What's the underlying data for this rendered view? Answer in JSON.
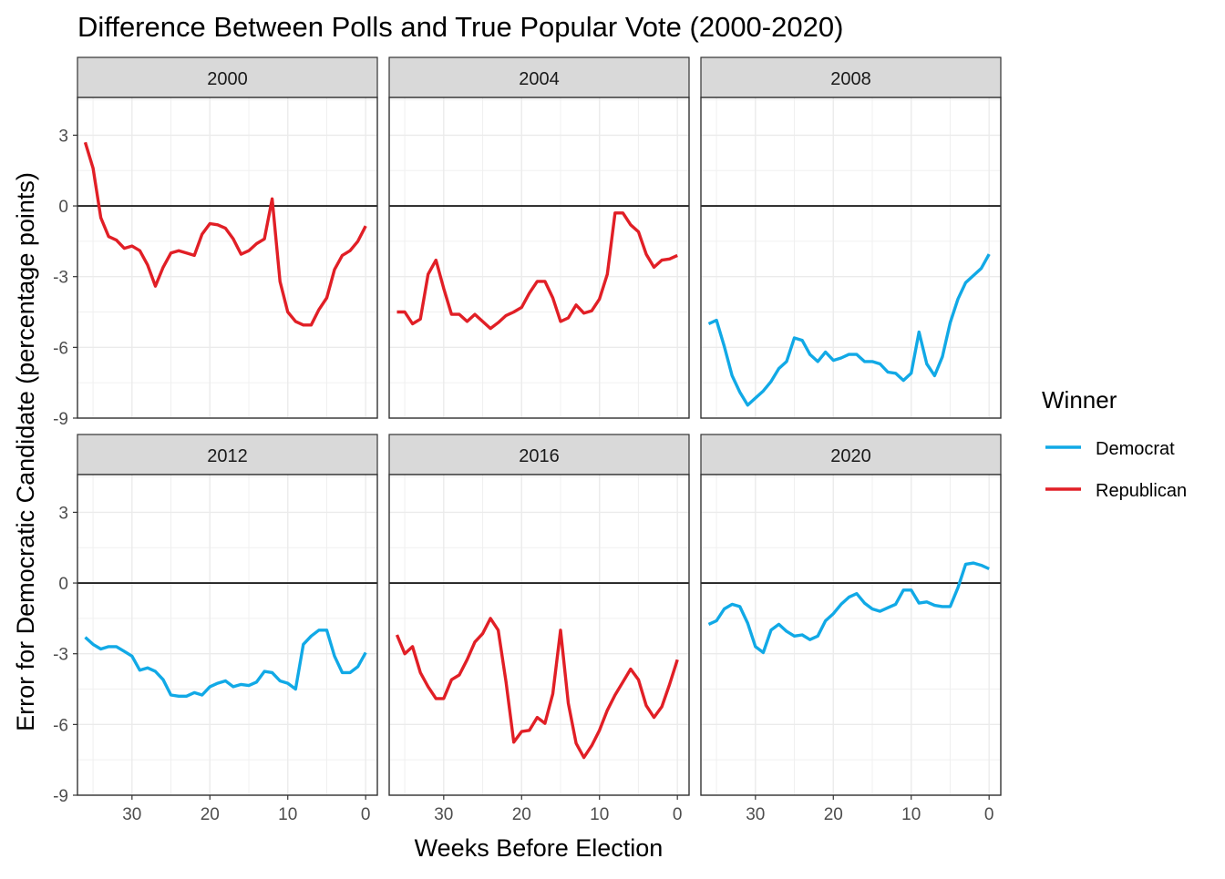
{
  "chart_data": {
    "type": "line",
    "title": "Difference Between Polls and True Popular Vote (2000-2020)",
    "xlabel": "Weeks Before Election",
    "ylabel": "Error for Democratic Candidate (percentage points)",
    "xlim": [
      37,
      -1.5
    ],
    "ylim": [
      -9,
      4.6
    ],
    "x_ticks": [
      30,
      20,
      10,
      0
    ],
    "y_ticks": [
      3,
      0,
      -3,
      -6,
      -9
    ],
    "reference_line_y": 0,
    "grid": true,
    "legend": {
      "title": "Winner",
      "position": "right",
      "entries": [
        {
          "label": "Democrat",
          "color": "#11A9E6"
        },
        {
          "label": "Republican",
          "color": "#E11F26"
        }
      ]
    },
    "colors": {
      "Democrat": "#11A9E6",
      "Republican": "#E11F26"
    },
    "panels": [
      {
        "label": "2000",
        "winner": "Republican",
        "x": [
          36,
          35,
          34,
          33,
          32,
          31,
          30,
          29,
          28,
          27,
          26,
          25,
          24,
          23,
          22,
          21,
          20,
          19,
          18,
          17,
          16,
          15,
          14,
          13,
          12,
          11,
          10,
          9,
          8,
          7,
          6,
          5,
          4,
          3,
          2,
          1,
          0
        ],
        "y": [
          2.7,
          1.6,
          -0.5,
          -1.3,
          -1.45,
          -1.8,
          -1.7,
          -1.9,
          -2.5,
          -3.4,
          -2.6,
          -2.0,
          -1.9,
          -2.0,
          -2.1,
          -1.2,
          -0.75,
          -0.8,
          -0.95,
          -1.4,
          -2.05,
          -1.9,
          -1.6,
          -1.4,
          0.3,
          -3.2,
          -4.5,
          -4.9,
          -5.05,
          -5.05,
          -4.4,
          -3.9,
          -2.7,
          -2.1,
          -1.9,
          -1.5,
          -0.85
        ]
      },
      {
        "label": "2004",
        "winner": "Republican",
        "x": [
          36,
          35,
          34,
          33,
          32,
          31,
          30,
          29,
          28,
          27,
          26,
          25,
          24,
          23,
          22,
          21,
          20,
          19,
          18,
          17,
          16,
          15,
          14,
          13,
          12,
          11,
          10,
          9,
          8,
          7,
          6,
          5,
          4,
          3,
          2,
          1,
          0
        ],
        "y": [
          -4.5,
          -4.5,
          -5.0,
          -4.8,
          -2.9,
          -2.3,
          -3.5,
          -4.6,
          -4.6,
          -4.9,
          -4.6,
          -4.9,
          -5.2,
          -4.95,
          -4.65,
          -4.5,
          -4.3,
          -3.7,
          -3.2,
          -3.2,
          -3.9,
          -4.9,
          -4.75,
          -4.2,
          -4.55,
          -4.45,
          -3.95,
          -2.9,
          -0.3,
          -0.3,
          -0.8,
          -1.1,
          -2.05,
          -2.6,
          -2.3,
          -2.25,
          -2.1
        ]
      },
      {
        "label": "2008",
        "winner": "Democrat",
        "x": [
          36,
          35,
          34,
          33,
          32,
          31,
          30,
          29,
          28,
          27,
          26,
          25,
          24,
          23,
          22,
          21,
          20,
          19,
          18,
          17,
          16,
          15,
          14,
          13,
          12,
          11,
          10,
          9,
          8,
          7,
          6,
          5,
          4,
          3,
          2,
          1,
          0
        ],
        "y": [
          -5.0,
          -4.85,
          -5.95,
          -7.2,
          -7.9,
          -8.45,
          -8.15,
          -7.85,
          -7.45,
          -6.9,
          -6.6,
          -5.6,
          -5.7,
          -6.3,
          -6.6,
          -6.2,
          -6.55,
          -6.45,
          -6.3,
          -6.3,
          -6.6,
          -6.6,
          -6.7,
          -7.05,
          -7.1,
          -7.4,
          -7.1,
          -5.35,
          -6.7,
          -7.2,
          -6.4,
          -4.95,
          -3.95,
          -3.25,
          -2.95,
          -2.65,
          -2.05
        ]
      },
      {
        "label": "2012",
        "winner": "Democrat",
        "x": [
          36,
          35,
          34,
          33,
          32,
          31,
          30,
          29,
          28,
          27,
          26,
          25,
          24,
          23,
          22,
          21,
          20,
          19,
          18,
          17,
          16,
          15,
          14,
          13,
          12,
          11,
          10,
          9,
          8,
          7,
          6,
          5,
          4,
          3,
          2,
          1,
          0
        ],
        "y": [
          -2.3,
          -2.6,
          -2.8,
          -2.7,
          -2.7,
          -2.9,
          -3.1,
          -3.7,
          -3.6,
          -3.75,
          -4.1,
          -4.75,
          -4.8,
          -4.8,
          -4.65,
          -4.75,
          -4.4,
          -4.25,
          -4.15,
          -4.4,
          -4.3,
          -4.35,
          -4.2,
          -3.75,
          -3.8,
          -4.15,
          -4.25,
          -4.5,
          -2.6,
          -2.25,
          -2.0,
          -2.0,
          -3.1,
          -3.8,
          -3.8,
          -3.55,
          -2.95
        ]
      },
      {
        "label": "2016",
        "winner": "Republican",
        "x": [
          36,
          35,
          34,
          33,
          32,
          31,
          30,
          29,
          28,
          27,
          26,
          25,
          24,
          23,
          22,
          21,
          20,
          19,
          18,
          17,
          16,
          15,
          14,
          13,
          12,
          11,
          10,
          9,
          8,
          7,
          6,
          5,
          4,
          3,
          2,
          1,
          0
        ],
        "y": [
          -2.2,
          -3.0,
          -2.7,
          -3.8,
          -4.4,
          -4.9,
          -4.9,
          -4.1,
          -3.9,
          -3.25,
          -2.5,
          -2.15,
          -1.5,
          -2.0,
          -4.2,
          -6.75,
          -6.3,
          -6.25,
          -5.7,
          -5.95,
          -4.7,
          -2.0,
          -5.1,
          -6.8,
          -7.4,
          -6.9,
          -6.25,
          -5.4,
          -4.75,
          -4.2,
          -3.65,
          -4.1,
          -5.2,
          -5.7,
          -5.25,
          -4.3,
          -3.25
        ]
      },
      {
        "label": "2020",
        "winner": "Democrat",
        "x": [
          36,
          35,
          34,
          33,
          32,
          31,
          30,
          29,
          28,
          27,
          26,
          25,
          24,
          23,
          22,
          21,
          20,
          19,
          18,
          17,
          16,
          15,
          14,
          13,
          12,
          11,
          10,
          9,
          8,
          7,
          6,
          5,
          4,
          3,
          2,
          1,
          0
        ],
        "y": [
          -1.75,
          -1.6,
          -1.1,
          -0.9,
          -1.0,
          -1.7,
          -2.7,
          -2.95,
          -2.0,
          -1.75,
          -2.05,
          -2.25,
          -2.2,
          -2.4,
          -2.25,
          -1.6,
          -1.3,
          -0.9,
          -0.6,
          -0.45,
          -0.85,
          -1.1,
          -1.2,
          -1.05,
          -0.9,
          -0.3,
          -0.3,
          -0.85,
          -0.8,
          -0.95,
          -1.0,
          -1.0,
          -0.2,
          0.8,
          0.85,
          0.75,
          0.6
        ]
      }
    ]
  }
}
